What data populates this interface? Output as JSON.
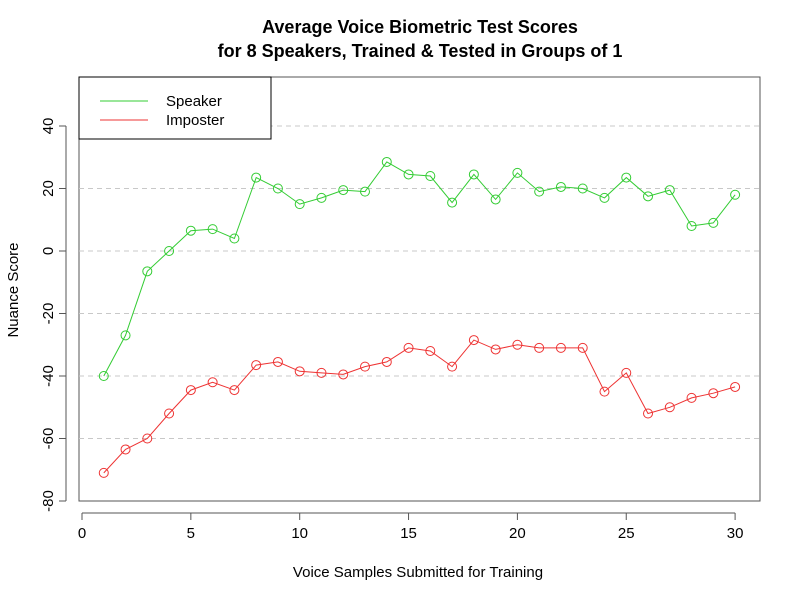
{
  "chart_data": {
    "type": "line",
    "title_line1": "Average Voice Biometric Test Scores",
    "title_line2": "for 8 Speakers, Trained & Tested in Groups of 1",
    "xlabel": "Voice Samples Submitted for Training",
    "ylabel": "Nuance Score",
    "xlim": [
      0,
      31
    ],
    "ylim": [
      -80,
      55
    ],
    "xticks": [
      0,
      5,
      10,
      15,
      20,
      25,
      30
    ],
    "yticks": [
      -80,
      -60,
      -40,
      -20,
      0,
      20,
      40
    ],
    "grid": {
      "horizontal_dashed": [
        40,
        20,
        0,
        -20,
        -40,
        -60
      ]
    },
    "legend_placement": "top-left",
    "x": [
      1,
      2,
      3,
      4,
      5,
      6,
      7,
      8,
      9,
      10,
      11,
      12,
      13,
      14,
      15,
      16,
      17,
      18,
      19,
      20,
      21,
      22,
      23,
      24,
      25,
      26,
      27,
      28,
      29,
      30
    ],
    "series": [
      {
        "name": "Speaker",
        "color": "#33cc33",
        "values": [
          -40,
          -27,
          -6.5,
          0,
          6.5,
          7,
          4,
          23.5,
          20,
          15,
          17,
          19.5,
          19,
          28.5,
          24.5,
          24,
          15.5,
          24.5,
          16.5,
          25,
          19,
          20.5,
          20,
          17,
          23.5,
          17.5,
          19.5,
          8,
          9,
          18
        ]
      },
      {
        "name": "Imposter",
        "color": "#ee3333",
        "values": [
          -71,
          -63.5,
          -60,
          -52,
          -44.5,
          -42,
          -44.5,
          -36.5,
          -35.5,
          -38.5,
          -39,
          -39.5,
          -37,
          -35.5,
          -31,
          -32,
          -37,
          -28.5,
          -31.5,
          -30,
          -31,
          -31,
          -31,
          -45,
          -39,
          -52,
          -50,
          -47,
          -45.5,
          -43.5
        ]
      }
    ]
  }
}
